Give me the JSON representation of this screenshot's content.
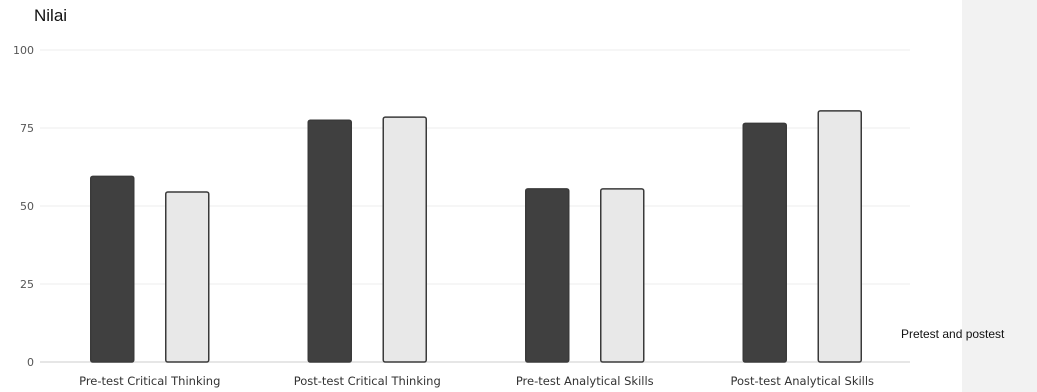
{
  "chart_data": {
    "type": "bar",
    "title": "Nilai",
    "caption": "Pretest and postest",
    "categories": [
      "Pre-test Critical Thinking",
      "Post-test Critical Thinking",
      "Pre-test Analytical Skills",
      "Post-test Analytical Skills"
    ],
    "series": [
      {
        "values": [
          59.5,
          77.5,
          55.5,
          76.5
        ],
        "color": "#404040"
      },
      {
        "values": [
          54.5,
          78.5,
          55.5,
          80.5
        ],
        "color": "#e8e8e8"
      }
    ],
    "ylim": [
      0,
      100
    ],
    "yticks": [
      0,
      25,
      50,
      75,
      100
    ],
    "grid": true,
    "legend": "none"
  }
}
